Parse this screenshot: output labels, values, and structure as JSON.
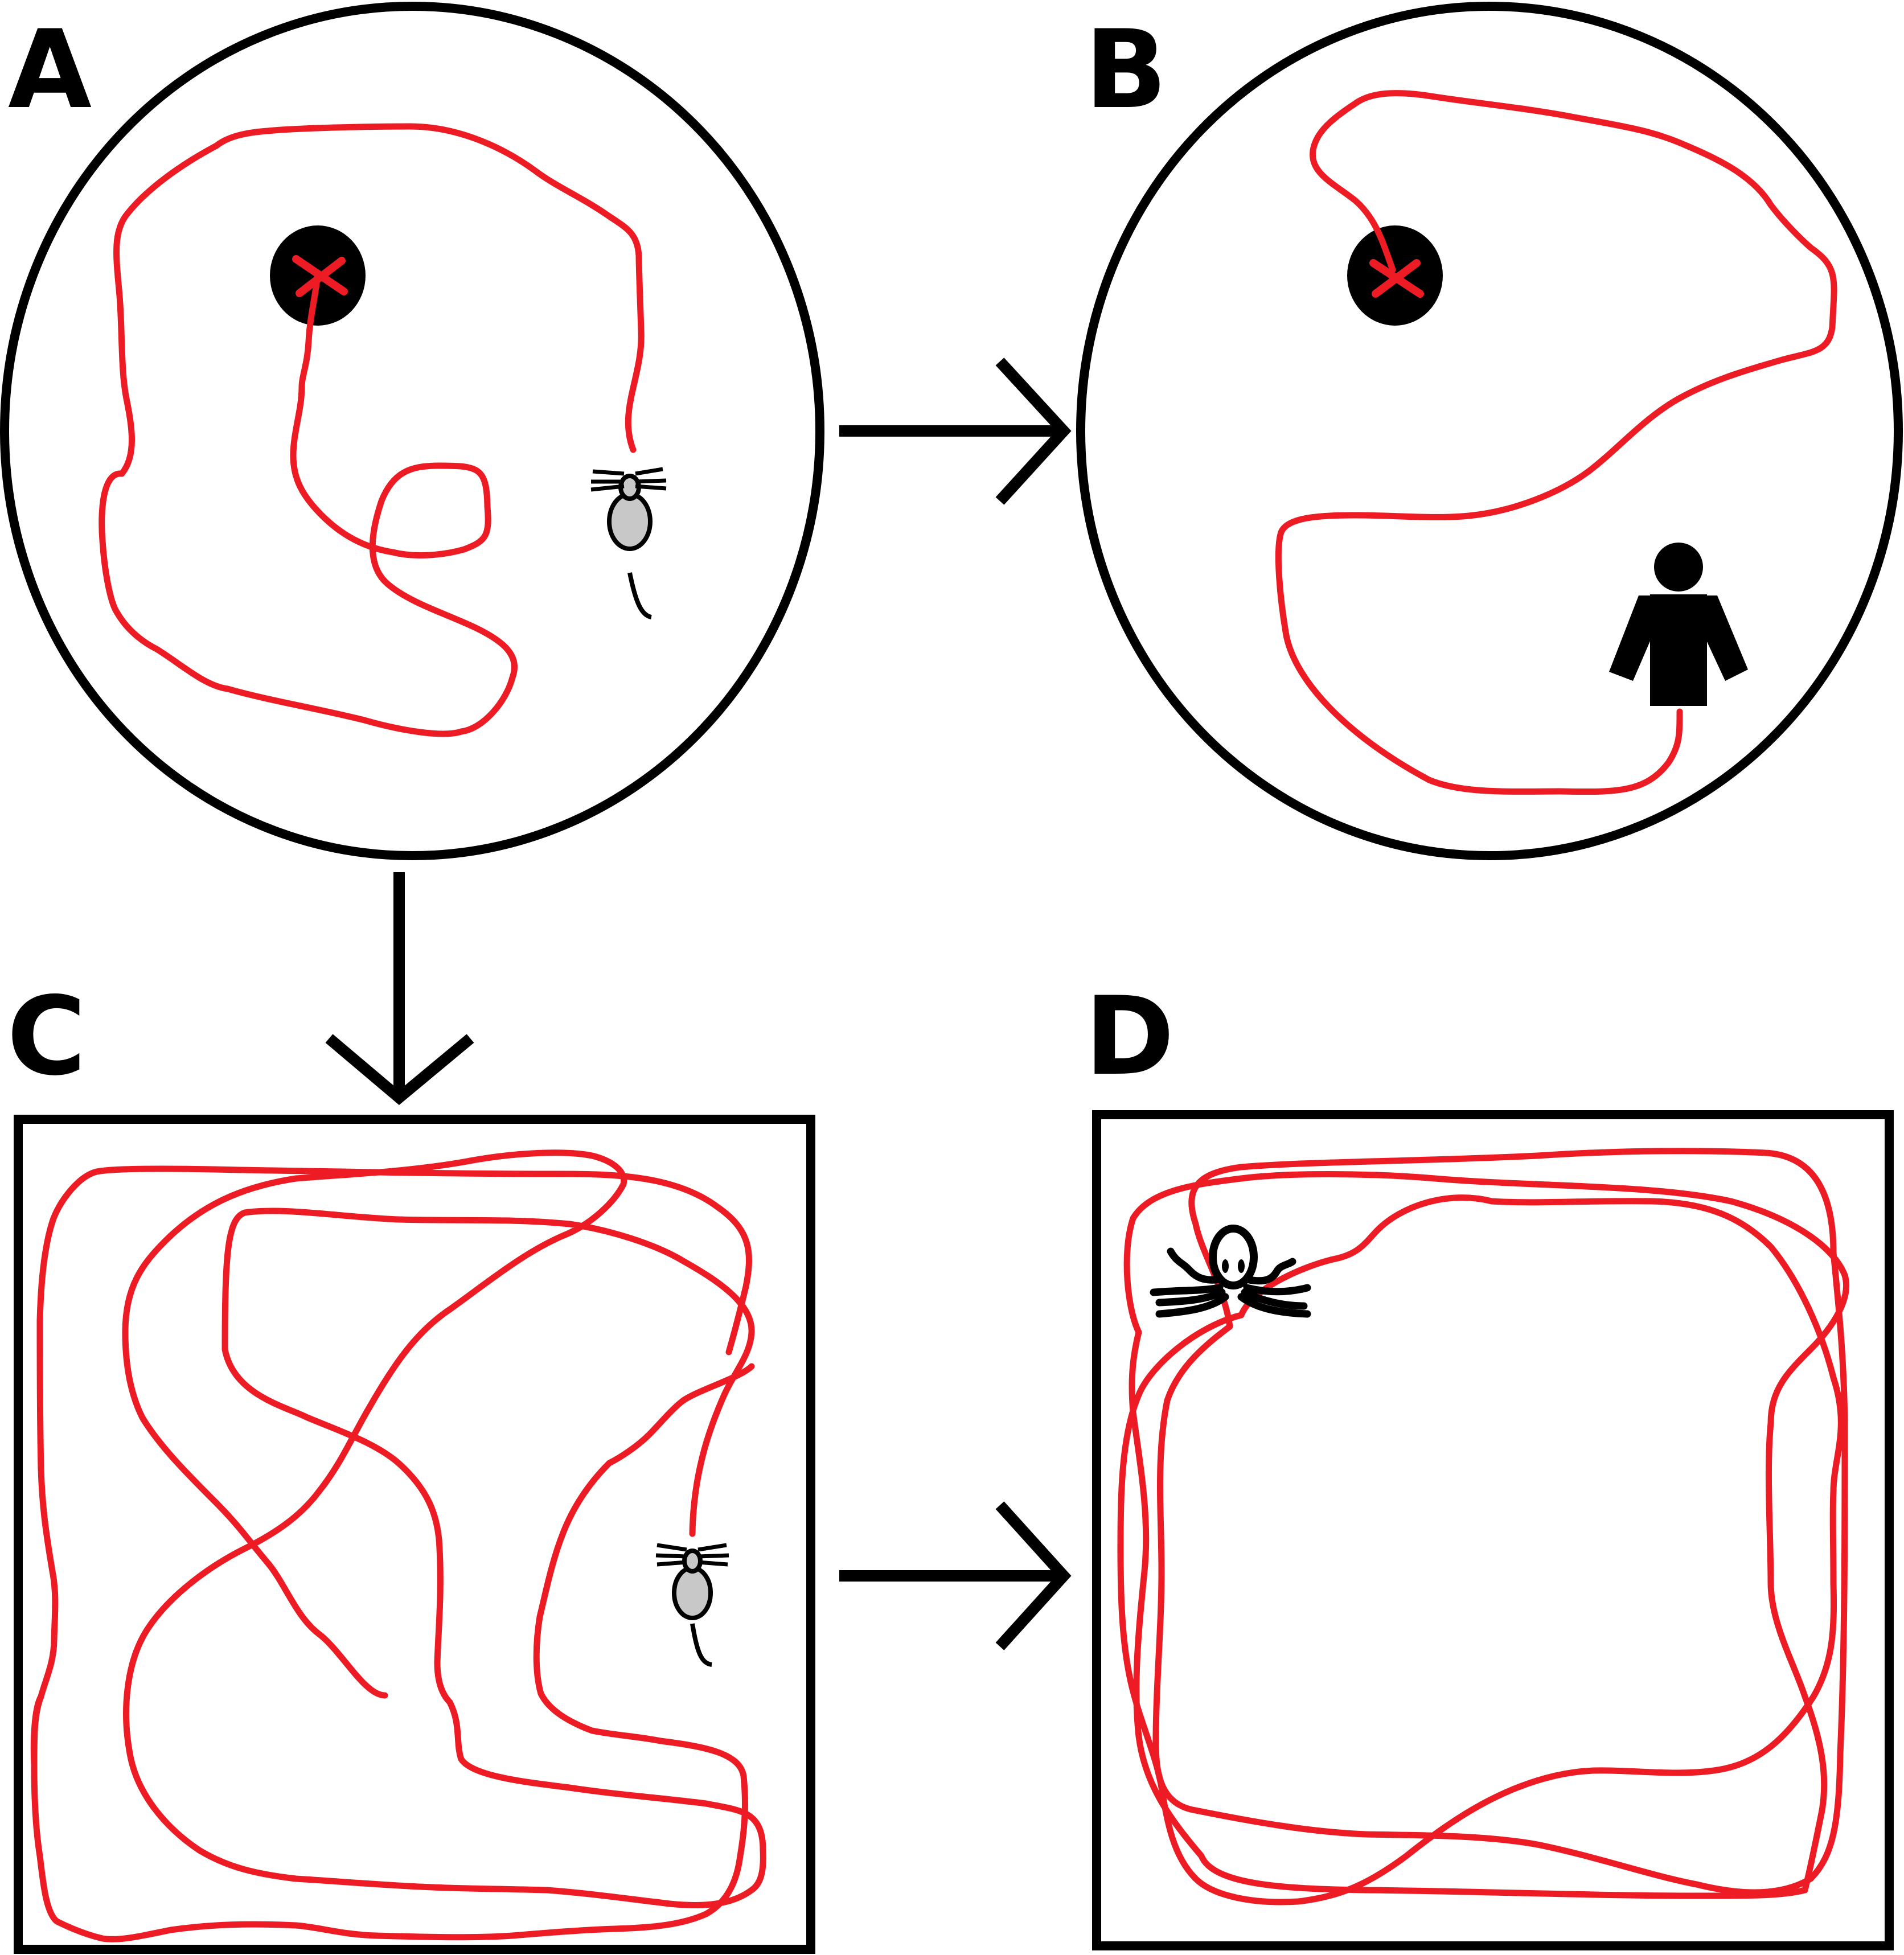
{
  "panels": [
    {
      "letter": "A",
      "arena": "circle",
      "animal": "mouse",
      "has_target": true
    },
    {
      "letter": "B",
      "arena": "circle",
      "animal": "human",
      "has_target": true
    },
    {
      "letter": "C",
      "arena": "square",
      "animal": "mouse",
      "has_target": false
    },
    {
      "letter": "D",
      "arena": "square",
      "animal": "octopus",
      "has_target": false
    }
  ],
  "colors": {
    "water": "#acdfe9",
    "path": "#ed1c24",
    "outline": "#000000",
    "figure_fill": "#000000",
    "mouse_body": "#c8c8c8"
  },
  "icons": [
    "mouse-icon",
    "human-icon",
    "octopus-icon",
    "target-platform-icon",
    "arrow-right-icon",
    "arrow-down-icon"
  ]
}
